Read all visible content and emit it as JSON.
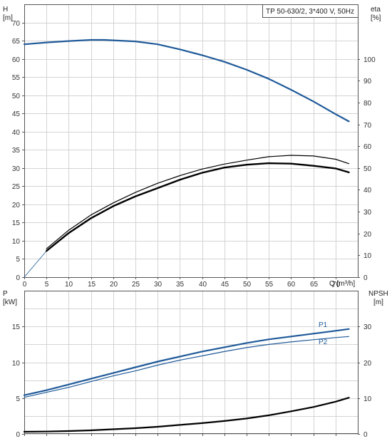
{
  "chart_data": [
    {
      "type": "line",
      "title": "TP 50-630/2, 3*400 V, 50Hz",
      "xlabel": "Q [m³/h]",
      "ylabel_left": [
        "H",
        "[m]"
      ],
      "ylabel_right": [
        "eta",
        "[%]"
      ],
      "xlim": [
        0,
        75
      ],
      "ylim_left": [
        0,
        75
      ],
      "ylim_right": [
        0,
        125
      ],
      "x_ticks": [
        "0",
        "5",
        "10",
        "15",
        "20",
        "25",
        "30",
        "35",
        "40",
        "45",
        "50",
        "55",
        "60",
        "65",
        "70"
      ],
      "y_left_ticks": [
        "0",
        "5",
        "10",
        "15",
        "20",
        "25",
        "30",
        "35",
        "40",
        "45",
        "50",
        "55",
        "60",
        "65",
        "70"
      ],
      "y_right_ticks": [
        "0",
        "10",
        "20",
        "30",
        "40",
        "50",
        "60",
        "70",
        "80",
        "90",
        "100"
      ],
      "grid": true,
      "series": [
        {
          "axis": "left",
          "color": "#1f5a99",
          "width": 2.2,
          "x": [
            0,
            5,
            10,
            15,
            18,
            20,
            25,
            30,
            35,
            40,
            45,
            50,
            55,
            60,
            65,
            70,
            73
          ],
          "y": [
            64,
            64.5,
            64.9,
            65.2,
            65.2,
            65.1,
            64.8,
            64,
            62.6,
            61,
            59.2,
            57,
            54.5,
            51.5,
            48.3,
            44.8,
            42.8
          ]
        },
        {
          "axis": "right",
          "color": "#1f5a99",
          "width": 0.8,
          "x": [
            0,
            5
          ],
          "y": [
            0,
            12
          ]
        },
        {
          "axis": "right",
          "color": "#000000",
          "width": 1.2,
          "x": [
            5,
            10,
            15,
            20,
            25,
            30,
            35,
            40,
            45,
            50,
            55,
            60,
            65,
            70,
            73
          ],
          "y": [
            13,
            21.5,
            28.5,
            34,
            38.8,
            43,
            46.5,
            49.5,
            51.8,
            53.6,
            55.2,
            55.8,
            55.5,
            54,
            52
          ]
        },
        {
          "axis": "right",
          "color": "#000000",
          "width": 2.4,
          "x": [
            5,
            10,
            15,
            20,
            25,
            30,
            35,
            40,
            45,
            50,
            55,
            60,
            65,
            70,
            73
          ],
          "y": [
            12,
            20.2,
            27,
            32.5,
            37,
            40.8,
            44.6,
            47.8,
            50.2,
            51.5,
            52.2,
            52,
            51,
            49.8,
            48
          ]
        }
      ]
    },
    {
      "type": "line",
      "xlim": [
        0,
        75
      ],
      "ylim_left": [
        0,
        20
      ],
      "ylim_right": [
        0,
        40
      ],
      "ylabel_left": [
        "P",
        "[kW]"
      ],
      "ylabel_right": [
        "NPSH",
        "[m]"
      ],
      "y_left_ticks": [
        "0",
        "5",
        "10",
        "15"
      ],
      "y_right_ticks": [
        "0",
        "10",
        "20",
        "30"
      ],
      "grid": true,
      "series": [
        {
          "name": "P1",
          "axis": "left",
          "color": "#1f5a99",
          "width": 2.2,
          "x": [
            0,
            5,
            10,
            15,
            20,
            25,
            30,
            35,
            40,
            45,
            50,
            55,
            60,
            65,
            70,
            73
          ],
          "y": [
            5.4,
            6.1,
            6.9,
            7.7,
            8.5,
            9.3,
            10.1,
            10.8,
            11.5,
            12.1,
            12.7,
            13.2,
            13.6,
            14,
            14.4,
            14.65
          ]
        },
        {
          "name": "P2",
          "axis": "left",
          "color": "#1f5a99",
          "width": 1.2,
          "x": [
            0,
            5,
            10,
            15,
            20,
            25,
            30,
            35,
            40,
            45,
            50,
            55,
            60,
            65,
            70,
            73
          ],
          "y": [
            5.1,
            5.8,
            6.5,
            7.3,
            8.1,
            8.8,
            9.6,
            10.3,
            10.9,
            11.5,
            12.05,
            12.5,
            12.85,
            13.15,
            13.45,
            13.6
          ]
        },
        {
          "axis": "right",
          "color": "#000000",
          "width": 2.2,
          "x": [
            0,
            5,
            10,
            15,
            20,
            25,
            30,
            35,
            40,
            45,
            50,
            55,
            60,
            65,
            70,
            73
          ],
          "y": [
            0.6,
            0.65,
            0.8,
            1.0,
            1.3,
            1.6,
            2.0,
            2.5,
            3.0,
            3.6,
            4.3,
            5.2,
            6.3,
            7.5,
            9.0,
            10.1
          ]
        }
      ]
    }
  ]
}
